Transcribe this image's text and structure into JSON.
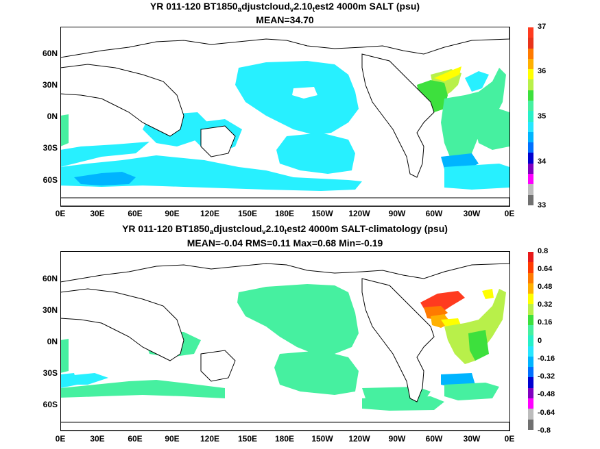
{
  "top": {
    "title": {
      "pre": "YR 011-120 BT1850",
      "s1": "a",
      "mid": "djustcloud",
      "s2": "v",
      "mid2": "2.10",
      "s3": "t",
      "post": "est2 4000m SALT (psu)"
    },
    "stats": "MEAN=34.70",
    "colorbar_labels": [
      "37",
      "36",
      "35",
      "34",
      "33"
    ],
    "colorbar_colors": [
      "#ff3b1f",
      "#e8341a",
      "#ff7a00",
      "#ffb000",
      "#ffff00",
      "#b8f04a",
      "#3de03d",
      "#46f0a0",
      "#27f0c8",
      "#27e6ff",
      "#00b4ff",
      "#0070ff",
      "#0000d0",
      "#8000c0",
      "#ff00ff",
      "#bcbcbc",
      "#707070"
    ]
  },
  "bottom": {
    "title": {
      "pre": "YR 011-120 BT1850",
      "s1": "a",
      "mid": "djustcloud",
      "s2": "v",
      "mid2": "2.10",
      "s3": "t",
      "post": "est2 4000m SALT-climatology (psu)"
    },
    "stats": "MEAN=-0.04   RMS=0.11   Max=0.68   Min=-0.19",
    "colorbar_labels": [
      "0.8",
      "0.64",
      "0.48",
      "0.32",
      "0.16",
      "0",
      "-0.16",
      "-0.32",
      "-0.48",
      "-0.64",
      "-0.8"
    ],
    "colorbar_colors": [
      "#e81a1a",
      "#ff3b00",
      "#ff7a00",
      "#ffb000",
      "#ffff00",
      "#b8f04a",
      "#3de03d",
      "#46f0a0",
      "#27f0c8",
      "#27e6ff",
      "#00b4ff",
      "#0070ff",
      "#0000d0",
      "#8000c0",
      "#ff00ff",
      "#bcbcbc",
      "#707070"
    ]
  },
  "lat_labels": [
    "60N",
    "30N",
    "0N",
    "30S",
    "60S"
  ],
  "lon_labels": [
    "0E",
    "30E",
    "60E",
    "90E",
    "120E",
    "150E",
    "180E",
    "150W",
    "120W",
    "90W",
    "60W",
    "30W",
    "0E"
  ],
  "colors": {
    "fresh_cyan": "#27f0ff",
    "mid_green": "#2ef0a0",
    "salty_yellow": "#ffff00",
    "salty_red": "#ff3b1f",
    "land": "#ffffff",
    "coast": "#000000"
  }
}
